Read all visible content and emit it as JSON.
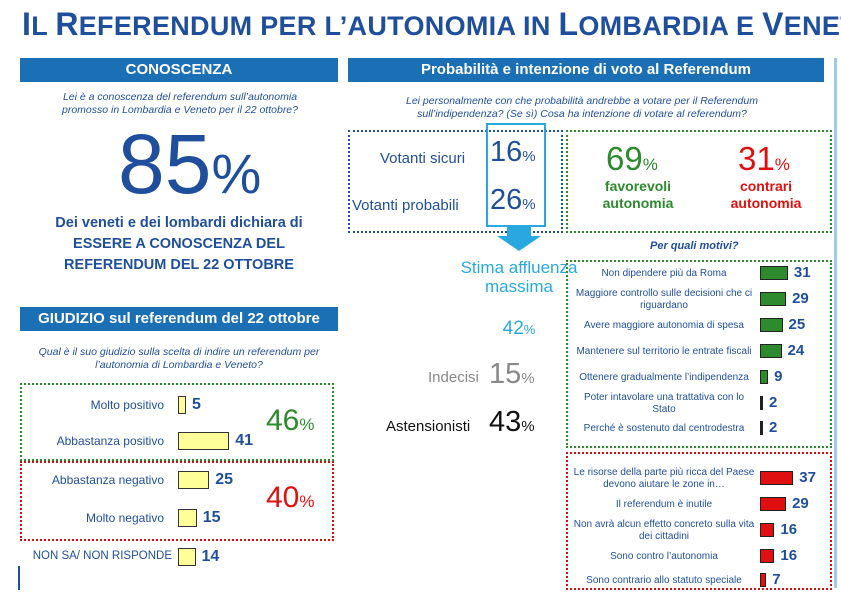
{
  "title": {
    "p1_cap": "I",
    "p1": "L ",
    "p2_cap": "R",
    "p2": "EFERENDUM PER L’AUTONOMIA IN ",
    "p3_cap": "L",
    "p3": "OMBARDIA E ",
    "p4_cap": "V",
    "p4": "ENETO"
  },
  "conoscenza": {
    "header": "CONOSCENZA",
    "question": "Lei è a conoscenza del referendum sull’autonomia promosso in Lombardia e Veneto per il 22 ottobre?",
    "value": "85",
    "pct": "%",
    "description": "Dei veneti e dei lombardi dichiara di ESSERE A CONOSCENZA DEL REFERENDUM DEL 22 OTTOBRE"
  },
  "giudizio": {
    "header": "GIUDIZIO sul referendum del 22 ottobre",
    "question": "Qual è il suo giudizio sulla scelta di indire un referendum per l’autonomia di Lombardia e Veneto?",
    "items": [
      {
        "label": "Molto positivo",
        "value": 5
      },
      {
        "label": "Abbastanza positivo",
        "value": 41
      },
      {
        "label": "Abbastanza negativo",
        "value": 25
      },
      {
        "label": "Molto negativo",
        "value": 15
      },
      {
        "label": "NON SA/ NON RISPONDE",
        "value": 14
      }
    ],
    "positive_total": "46",
    "negative_total": "40",
    "pct": "%",
    "colors": {
      "positive": "#2d8a2d",
      "negative": "#e01010",
      "bar": "#ffff99"
    }
  },
  "probabilita": {
    "header": "Probabilità e intenzione di voto al Referendum",
    "question": "Lei personalmente con che probabilità andrebbe a votare per il Referendum sull’indipendenza? (Se sì) Cosa ha intenzione di votare al referendum?",
    "sicuri_label": "Votanti sicuri",
    "sicuri_value": "16",
    "probabili_label": "Votanti probabili",
    "probabili_value": "26",
    "pct": "%",
    "stima_label": "Stima affluenza massima",
    "stima_value": "42",
    "indecisi_label": "Indecisi",
    "indecisi_value": "15",
    "astensionisti_label": "Astensionisti",
    "astensionisti_value": "43",
    "favorevoli_value": "69",
    "favorevoli_label": "favorevoli autonomia",
    "contrari_value": "31",
    "contrari_label": "contrari autonomia",
    "motivi_question": "Per quali motivi?"
  },
  "motivi_favorevoli": [
    {
      "label": "Non dipendere più da Roma",
      "value": 31
    },
    {
      "label": "Maggiore controllo sulle decisioni che ci riguardano",
      "value": 29
    },
    {
      "label": "Avere maggiore autonomia di spesa",
      "value": 25
    },
    {
      "label": "Mantenere sul territorio le entrate fiscali",
      "value": 24
    },
    {
      "label": "Ottenere gradualmente l’indipendenza",
      "value": 9
    },
    {
      "label": "Poter intavolare una trattativa con lo Stato",
      "value": 2
    },
    {
      "label": "Perché è sostenuto dal centrodestra",
      "value": 2
    }
  ],
  "motivi_contrari": [
    {
      "label": "Le risorse della parte più ricca del Paese devono aiutare le zone in…",
      "value": 37
    },
    {
      "label": "Il referendum è inutile",
      "value": 29
    },
    {
      "label": "Non avrà alcun effetto concreto sulla vita dei cittadini",
      "value": 16
    },
    {
      "label": "Sono contro l’autonomia",
      "value": 16
    },
    {
      "label": "Sono contrario allo statuto speciale",
      "value": 7
    }
  ]
}
